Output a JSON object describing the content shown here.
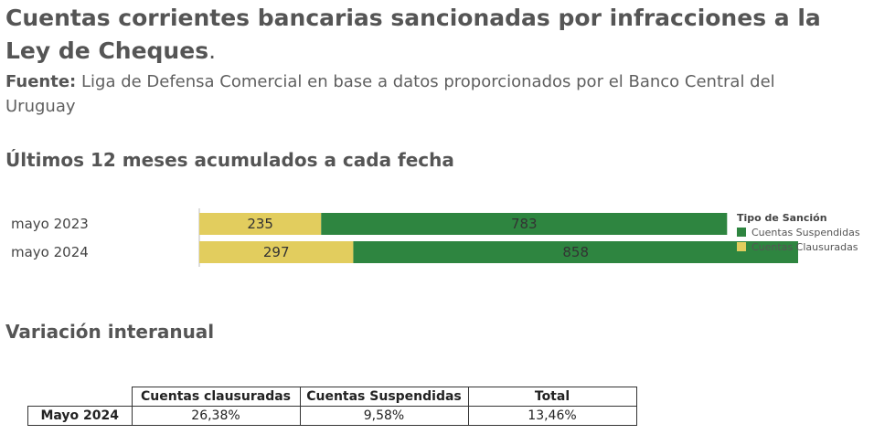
{
  "title": "Cuentas corrientes bancarias sancionadas por infracciones a la Ley de Cheques",
  "title_suffix": ".",
  "source_label": "Fuente:",
  "source_text": "Liga de Defensa Comercial en base a datos proporcionados por el Banco Central del Uruguay",
  "section1_title": "Últimos 12 meses acumulados a cada fecha",
  "section2_title": "Variación interanual",
  "chart_data": {
    "type": "bar",
    "orientation": "horizontal",
    "stacked": true,
    "categories": [
      "mayo 2023",
      "mayo 2024"
    ],
    "series": [
      {
        "name": "Cuentas Clausuradas",
        "values": [
          235,
          297
        ],
        "color": "#e2cd5e"
      },
      {
        "name": "Cuentas Suspendidas",
        "values": [
          783,
          858
        ],
        "color": "#2e8540"
      }
    ],
    "xlim": [
      0,
      1155
    ],
    "legend_title": "Tipo de Sanción",
    "legend_placement": "right",
    "grid": false
  },
  "table": {
    "headers": [
      "Cuentas clausuradas",
      "Cuentas Suspendidas",
      "Total"
    ],
    "rows": [
      {
        "label": "Mayo 2024",
        "values": [
          "26,38%",
          "9,58%",
          "13,46%"
        ]
      }
    ]
  }
}
